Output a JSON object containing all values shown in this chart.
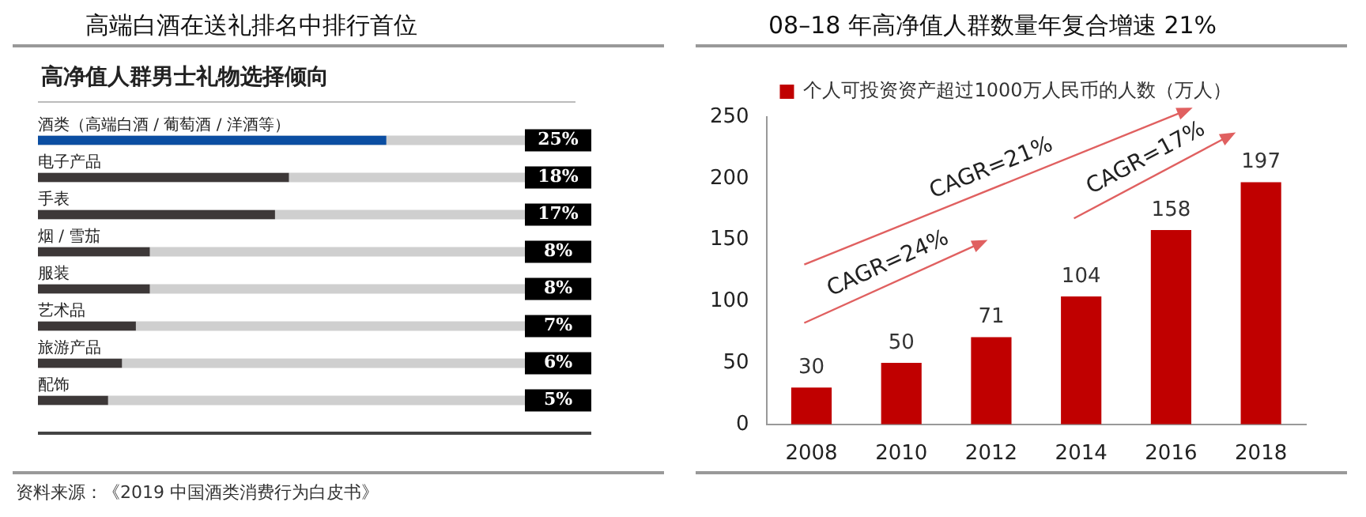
{
  "chart_data": [
    {
      "type": "bar",
      "orientation": "horizontal",
      "title": "高端白酒在送礼排名中排行首位",
      "subtitle": "高净值人群男士礼物选择倾向",
      "categories": [
        "酒类（高端白酒 / 葡萄酒 / 洋酒等）",
        "电子产品",
        "手表",
        "烟 / 雪茄",
        "服装",
        "艺术品",
        "旅游产品",
        "配饰"
      ],
      "values": [
        25,
        18,
        17,
        8,
        8,
        7,
        6,
        5
      ],
      "colors": [
        "#0b4ea2",
        "#3d3838",
        "#3d3838",
        "#3d3838",
        "#3d3838",
        "#3d3838",
        "#3d3838",
        "#3d3838"
      ],
      "value_labels": [
        "25%",
        "18%",
        "17%",
        "8%",
        "8%",
        "7%",
        "6%",
        "5%"
      ],
      "xlim": [
        0,
        35
      ],
      "grid": false,
      "legend": false,
      "annotations": [
        "资料来源：《2019 中国酒类消费行为白皮书》"
      ]
    },
    {
      "type": "bar",
      "title": "08–18 年高净值人群数量年复合增速 21%",
      "categories": [
        "2008",
        "2010",
        "2012",
        "2014",
        "2016",
        "2018"
      ],
      "series": [
        {
          "name": "个人可投资资产超过1000万人民币的人数（万人）",
          "color": "#c00000",
          "values": [
            30,
            50,
            71,
            104,
            158,
            197
          ]
        }
      ],
      "ylim": [
        0,
        250
      ],
      "yticks": [
        0,
        50,
        100,
        150,
        200,
        250
      ],
      "data_labels": true,
      "grid": false,
      "legend": "top",
      "annotations": [
        "CAGR=24%",
        "CAGR=21%",
        "CAGR=17%"
      ]
    }
  ]
}
